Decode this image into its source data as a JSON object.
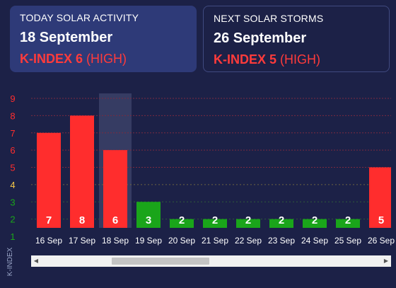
{
  "today": {
    "title": "TODAY SOLAR ACTIVITY",
    "date": "18 September",
    "kp_label": "K-INDEX 6",
    "level": "(HIGH)"
  },
  "next": {
    "title": "NEXT SOLAR STORMS",
    "date": "26 September",
    "kp_label": "K-INDEX 5",
    "level": "(HIGH)"
  },
  "colors": {
    "storm": "#ff2d2d",
    "moderate": "#f7c948",
    "quiet": "#1aa51a",
    "background": "#1c2147",
    "highlight": "#3b4168"
  },
  "chart_data": {
    "type": "bar",
    "ylabel": "K-INDEX",
    "y_ticks": [
      1,
      2,
      3,
      4,
      5,
      6,
      7,
      8,
      9
    ],
    "y_tick_colors": [
      "#1aa51a",
      "#1aa51a",
      "#1aa51a",
      "#f7c948",
      "#ff2d2d",
      "#ff2d2d",
      "#ff2d2d",
      "#ff2d2d",
      "#ff2d2d"
    ],
    "ylim": [
      1,
      9
    ],
    "categories": [
      "16 Sep",
      "17 Sep",
      "18 Sep",
      "19 Sep",
      "20 Sep",
      "21 Sep",
      "22 Sep",
      "23 Sep",
      "24 Sep",
      "25 Sep",
      "26 Sep"
    ],
    "values": [
      7,
      8,
      6,
      3,
      2,
      2,
      2,
      2,
      2,
      2,
      5
    ],
    "highlighted": "18 Sep"
  }
}
